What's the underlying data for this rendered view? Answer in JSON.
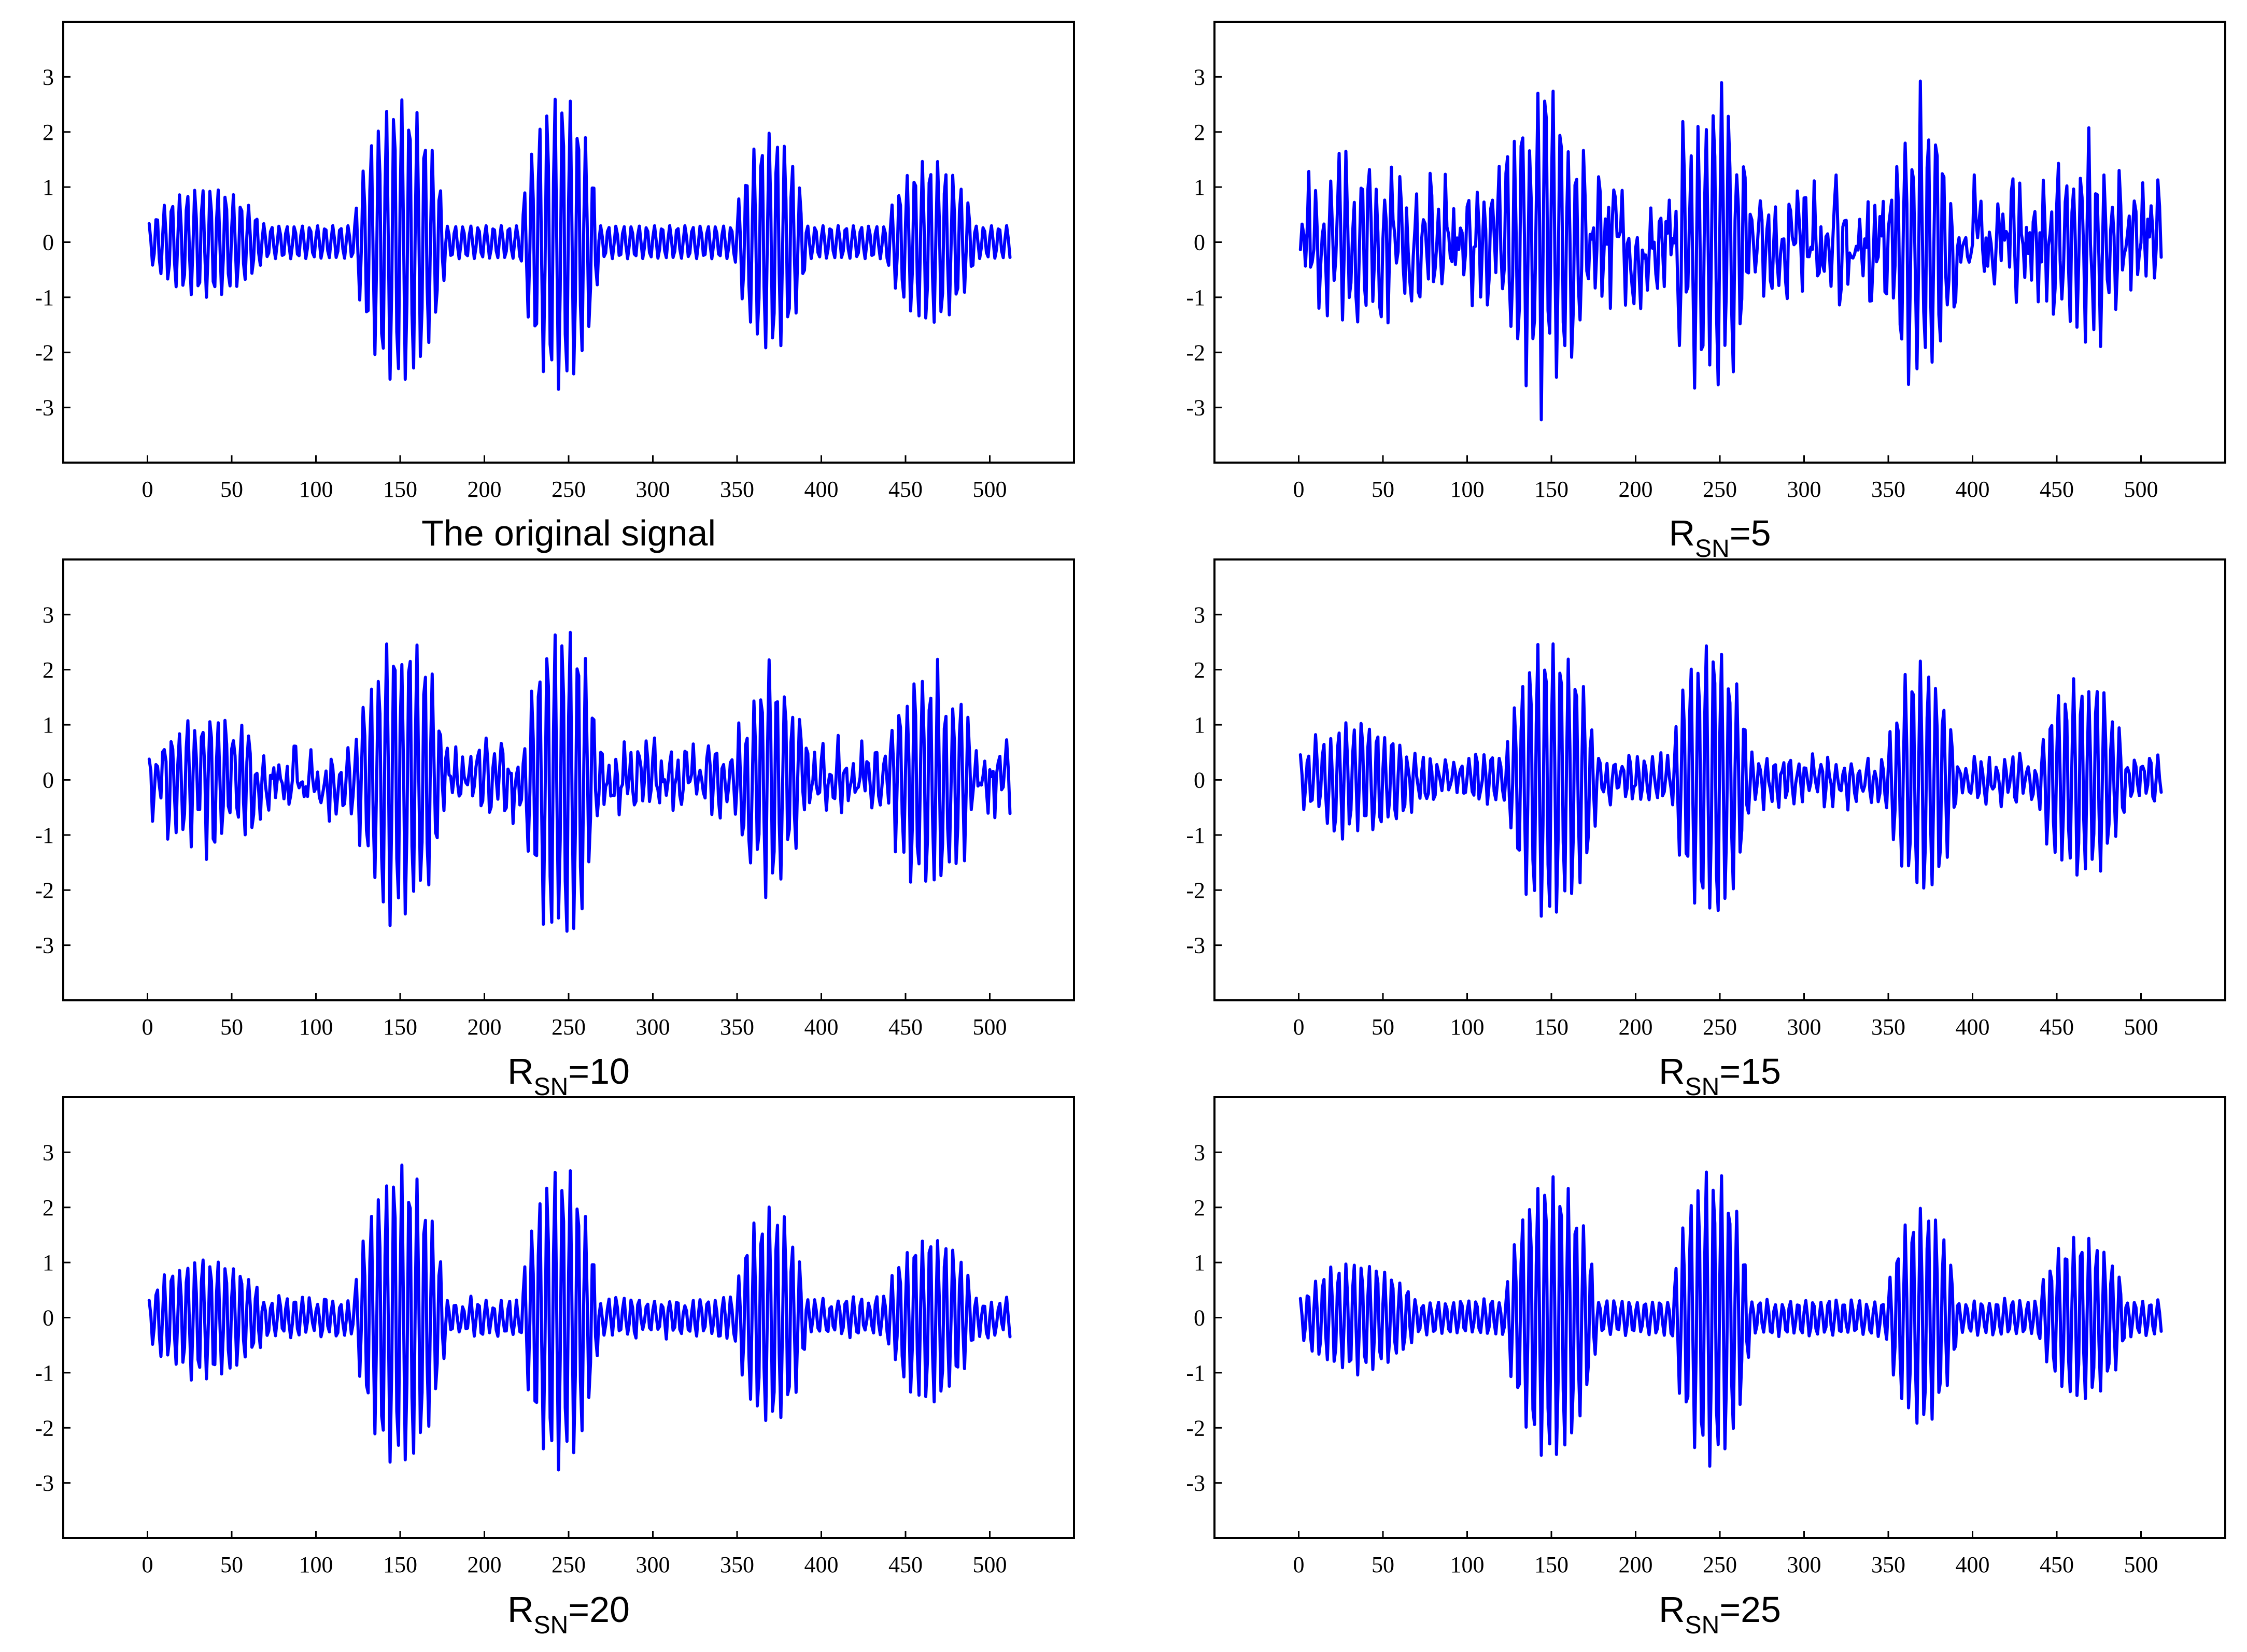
{
  "chart_data": [
    {
      "type": "line",
      "panel": "a",
      "caption": "The original signal",
      "caption_base": "The original signal",
      "caption_sub": "",
      "caption_tail": "",
      "xlim": [
        -50,
        550
      ],
      "ylim": [
        -4,
        4
      ],
      "xticks": [
        0,
        50,
        100,
        150,
        200,
        250,
        300,
        350,
        400,
        450,
        500
      ],
      "yticks": [
        -3,
        -2,
        -1,
        0,
        1,
        2,
        3
      ],
      "grid": false,
      "line_color": "#0000FF",
      "series": [
        {
          "x_start": 1,
          "x_step": 1,
          "n": 512,
          "bursts": [
            {
              "center": 35,
              "width": 38,
              "amp": 1.0
            },
            {
              "center": 150,
              "width": 28,
              "amp": 2.6
            },
            {
              "center": 245,
              "width": 24,
              "amp": 2.7
            },
            {
              "center": 370,
              "width": 22,
              "amp": 2.0
            },
            {
              "center": 465,
              "width": 28,
              "amp": 1.5
            }
          ],
          "base_amp": 0.3,
          "noise": 0.0,
          "cycles_per_sample": 0.22
        }
      ]
    },
    {
      "type": "line",
      "panel": "b",
      "caption": "RSN=5",
      "caption_base": "R",
      "caption_sub": "SN",
      "caption_tail": "=5",
      "xlim": [
        -50,
        550
      ],
      "ylim": [
        -4,
        4
      ],
      "xticks": [
        0,
        50,
        100,
        150,
        200,
        250,
        300,
        350,
        400,
        450,
        500
      ],
      "yticks": [
        -3,
        -2,
        -1,
        0,
        1,
        2,
        3
      ],
      "grid": false,
      "line_color": "#0000FF",
      "series": [
        {
          "x_start": 1,
          "x_step": 1,
          "n": 512,
          "bursts": [
            {
              "center": 35,
              "width": 38,
              "amp": 1.3
            },
            {
              "center": 145,
              "width": 28,
              "amp": 2.6
            },
            {
              "center": 245,
              "width": 24,
              "amp": 2.5
            },
            {
              "center": 370,
              "width": 22,
              "amp": 2.3
            },
            {
              "center": 465,
              "width": 28,
              "amp": 1.6
            }
          ],
          "base_amp": 0.5,
          "noise": 0.55,
          "cycles_per_sample": 0.22
        }
      ]
    },
    {
      "type": "line",
      "panel": "c",
      "caption": "RSN=10",
      "caption_base": "R",
      "caption_sub": "SN",
      "caption_tail": "=10",
      "xlim": [
        -50,
        550
      ],
      "ylim": [
        -4,
        4
      ],
      "xticks": [
        0,
        50,
        100,
        150,
        200,
        250,
        300,
        350,
        400,
        450,
        500
      ],
      "yticks": [
        -3,
        -2,
        -1,
        0,
        1,
        2,
        3
      ],
      "grid": false,
      "line_color": "#0000FF",
      "series": [
        {
          "x_start": 1,
          "x_step": 1,
          "n": 512,
          "bursts": [
            {
              "center": 35,
              "width": 38,
              "amp": 1.1
            },
            {
              "center": 150,
              "width": 28,
              "amp": 2.5
            },
            {
              "center": 245,
              "width": 24,
              "amp": 2.8
            },
            {
              "center": 370,
              "width": 22,
              "amp": 2.0
            },
            {
              "center": 465,
              "width": 28,
              "amp": 1.9
            }
          ],
          "base_amp": 0.4,
          "noise": 0.3,
          "cycles_per_sample": 0.22
        }
      ]
    },
    {
      "type": "line",
      "panel": "d",
      "caption": "RSN=15",
      "caption_base": "R",
      "caption_sub": "SN",
      "caption_tail": "=15",
      "xlim": [
        -50,
        550
      ],
      "ylim": [
        -4,
        4
      ],
      "xticks": [
        0,
        50,
        100,
        150,
        200,
        250,
        300,
        350,
        400,
        450,
        500
      ],
      "yticks": [
        -3,
        -2,
        -1,
        0,
        1,
        2,
        3
      ],
      "grid": false,
      "line_color": "#0000FF",
      "series": [
        {
          "x_start": 1,
          "x_step": 1,
          "n": 512,
          "bursts": [
            {
              "center": 35,
              "width": 38,
              "amp": 1.0
            },
            {
              "center": 150,
              "width": 28,
              "amp": 2.5
            },
            {
              "center": 245,
              "width": 24,
              "amp": 2.5
            },
            {
              "center": 370,
              "width": 22,
              "amp": 2.1
            },
            {
              "center": 465,
              "width": 28,
              "amp": 1.8
            }
          ],
          "base_amp": 0.35,
          "noise": 0.15,
          "cycles_per_sample": 0.22
        }
      ]
    },
    {
      "type": "line",
      "panel": "e",
      "caption": "RSN=20",
      "caption_base": "R",
      "caption_sub": "SN",
      "caption_tail": "=20",
      "xlim": [
        -50,
        550
      ],
      "ylim": [
        -4,
        4
      ],
      "xticks": [
        0,
        50,
        100,
        150,
        200,
        250,
        300,
        350,
        400,
        450,
        500
      ],
      "yticks": [
        -3,
        -2,
        -1,
        0,
        1,
        2,
        3
      ],
      "grid": false,
      "line_color": "#0000FF",
      "series": [
        {
          "x_start": 1,
          "x_step": 1,
          "n": 512,
          "bursts": [
            {
              "center": 35,
              "width": 38,
              "amp": 1.1
            },
            {
              "center": 150,
              "width": 28,
              "amp": 2.7
            },
            {
              "center": 245,
              "width": 24,
              "amp": 2.7
            },
            {
              "center": 370,
              "width": 22,
              "amp": 2.0
            },
            {
              "center": 465,
              "width": 28,
              "amp": 1.5
            }
          ],
          "base_amp": 0.32,
          "noise": 0.08,
          "cycles_per_sample": 0.22
        }
      ]
    },
    {
      "type": "line",
      "panel": "f",
      "caption": "RSN=25",
      "caption_base": "R",
      "caption_sub": "SN",
      "caption_tail": "=25",
      "xlim": [
        -50,
        550
      ],
      "ylim": [
        -4,
        4
      ],
      "xticks": [
        0,
        50,
        100,
        150,
        200,
        250,
        300,
        350,
        400,
        450,
        500
      ],
      "yticks": [
        -3,
        -2,
        -1,
        0,
        1,
        2,
        3
      ],
      "grid": false,
      "line_color": "#0000FF",
      "series": [
        {
          "x_start": 1,
          "x_step": 1,
          "n": 512,
          "bursts": [
            {
              "center": 35,
              "width": 38,
              "amp": 1.0
            },
            {
              "center": 150,
              "width": 28,
              "amp": 2.6
            },
            {
              "center": 245,
              "width": 24,
              "amp": 2.7
            },
            {
              "center": 370,
              "width": 22,
              "amp": 2.0
            },
            {
              "center": 465,
              "width": 28,
              "amp": 1.5
            }
          ],
          "base_amp": 0.3,
          "noise": 0.04,
          "cycles_per_sample": 0.22
        }
      ]
    }
  ]
}
